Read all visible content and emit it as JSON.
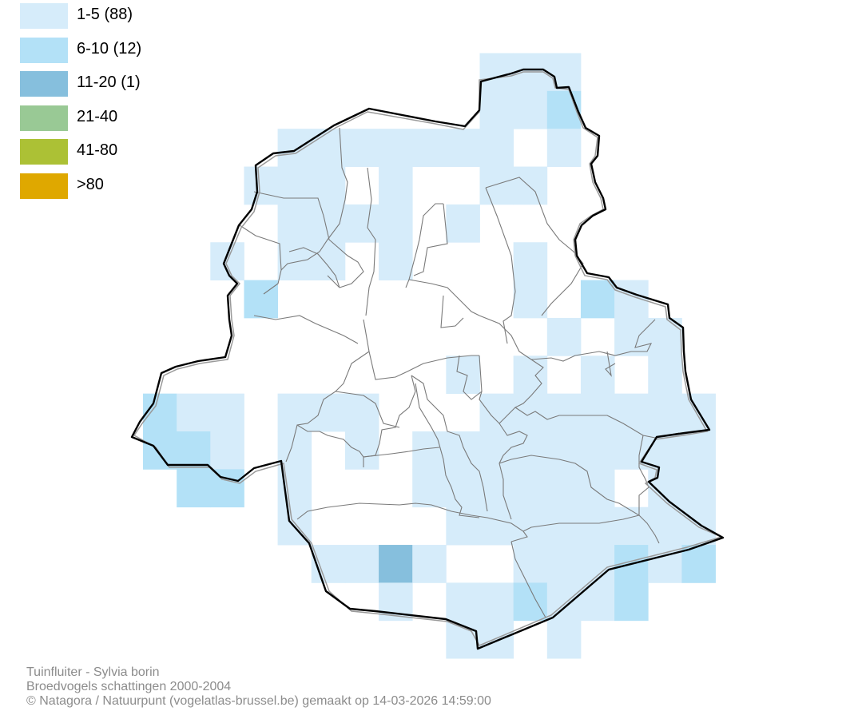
{
  "legend": [
    {
      "label": "1-5 (88)",
      "color": "#d6ecfa"
    },
    {
      "label": "6-10 (12)",
      "color": "#b3e1f7"
    },
    {
      "label": "11-20 (1)",
      "color": "#86bfdd"
    },
    {
      "label": "21-40",
      "color": "#99c995"
    },
    {
      "label": "41-80",
      "color": "#acc135"
    },
    {
      "label": ">80",
      "color": "#dfa800"
    }
  ],
  "caption": {
    "line1": "Tuinfluiter - Sylvia borin",
    "line2": "Broedvogels schattingen 2000-2004",
    "line3": "© Natagora / Natuurpunt (vogelatlas-brussel.be) gemaakt op 14-03-2026 14:59:00"
  },
  "colors": {
    "boundary": "#000000",
    "district_lines": "#7a7a7a"
  }
}
